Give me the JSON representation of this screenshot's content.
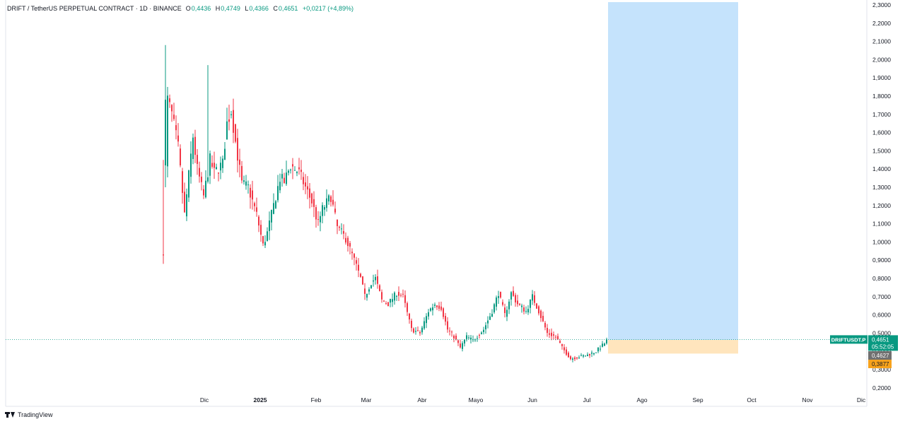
{
  "header": {
    "symbol": "DRIFT / TetherUS PERPETUAL CONTRACT · 1D · BINANCE",
    "o_label": "O",
    "o_value": "0,4436",
    "h_label": "H",
    "h_value": "0,4749",
    "l_label": "L",
    "l_value": "0,4366",
    "c_label": "C",
    "c_value": "0,4651",
    "change": "+0,0217 (+4,89%)"
  },
  "footer": {
    "brand": "TradingView",
    "logo_icon": "tradingview-logo-icon"
  },
  "badges": {
    "ticker": "DRIFTUSDT.P",
    "price": "0,4651",
    "countdown": "05:52:05",
    "entry": "0,4627",
    "stop": "0,3877"
  },
  "colors": {
    "up": "#089981",
    "down": "#f23645",
    "profit_zone": "#bbdefb",
    "loss_zone": "#ffe0b2",
    "entry_badge": "#707070",
    "stop_badge": "#f7a21b"
  },
  "chart_data": {
    "type": "candlestick",
    "interval": "1D",
    "x_labels": [
      "Dic",
      "2025",
      "Feb",
      "Mar",
      "Abr",
      "Mayo",
      "Jun",
      "Jul",
      "Ago",
      "Sep",
      "Oct",
      "Nov",
      "Dic"
    ],
    "y_ticks": [
      "2,3000",
      "2,2000",
      "2,1000",
      "2,0000",
      "1,9000",
      "1,8000",
      "1,7000",
      "1,6000",
      "1,5000",
      "1,4000",
      "1,3000",
      "1,2000",
      "1,1000",
      "1,0000",
      "0,9000",
      "0,8000",
      "0,7000",
      "0,6000",
      "0,5000",
      "0,4000",
      "0,3000",
      "0,2000"
    ],
    "ylim": [
      0.2,
      2.3
    ],
    "current_price": 0.4651,
    "position": {
      "entry": 0.4627,
      "stop": 0.3877,
      "target": 2.3
    },
    "keypoints": [
      {
        "t": 0,
        "v": 0.95
      },
      {
        "t": 1,
        "v": 1.4
      },
      {
        "t": 2,
        "v": 1.78
      },
      {
        "t": 4,
        "v": 1.7
      },
      {
        "t": 7,
        "v": 1.52
      },
      {
        "t": 10,
        "v": 1.15
      },
      {
        "t": 14,
        "v": 1.58
      },
      {
        "t": 16,
        "v": 1.4
      },
      {
        "t": 19,
        "v": 1.25
      },
      {
        "t": 22,
        "v": 1.45
      },
      {
        "t": 24,
        "v": 1.38
      },
      {
        "t": 28,
        "v": 1.43
      },
      {
        "t": 30,
        "v": 1.65
      },
      {
        "t": 32,
        "v": 1.72
      },
      {
        "t": 34,
        "v": 1.55
      },
      {
        "t": 37,
        "v": 1.32
      },
      {
        "t": 40,
        "v": 1.3
      },
      {
        "t": 44,
        "v": 1.15
      },
      {
        "t": 47,
        "v": 0.98
      },
      {
        "t": 49,
        "v": 1.05
      },
      {
        "t": 52,
        "v": 1.2
      },
      {
        "t": 55,
        "v": 1.35
      },
      {
        "t": 57,
        "v": 1.33
      },
      {
        "t": 60,
        "v": 1.42
      },
      {
        "t": 64,
        "v": 1.38
      },
      {
        "t": 67,
        "v": 1.3
      },
      {
        "t": 70,
        "v": 1.22
      },
      {
        "t": 73,
        "v": 1.1
      },
      {
        "t": 75,
        "v": 1.18
      },
      {
        "t": 79,
        "v": 1.25
      },
      {
        "t": 82,
        "v": 1.08
      },
      {
        "t": 86,
        "v": 1.02
      },
      {
        "t": 90,
        "v": 0.9
      },
      {
        "t": 93,
        "v": 0.8
      },
      {
        "t": 95,
        "v": 0.7
      },
      {
        "t": 98,
        "v": 0.78
      },
      {
        "t": 100,
        "v": 0.8
      },
      {
        "t": 103,
        "v": 0.68
      },
      {
        "t": 106,
        "v": 0.66
      },
      {
        "t": 110,
        "v": 0.72
      },
      {
        "t": 113,
        "v": 0.7
      },
      {
        "t": 117,
        "v": 0.52
      },
      {
        "t": 121,
        "v": 0.5
      },
      {
        "t": 125,
        "v": 0.62
      },
      {
        "t": 128,
        "v": 0.66
      },
      {
        "t": 131,
        "v": 0.64
      },
      {
        "t": 134,
        "v": 0.52
      },
      {
        "t": 137,
        "v": 0.48
      },
      {
        "t": 140,
        "v": 0.42
      },
      {
        "t": 143,
        "v": 0.48
      },
      {
        "t": 146,
        "v": 0.46
      },
      {
        "t": 151,
        "v": 0.52
      },
      {
        "t": 155,
        "v": 0.62
      },
      {
        "t": 158,
        "v": 0.72
      },
      {
        "t": 161,
        "v": 0.6
      },
      {
        "t": 164,
        "v": 0.72
      },
      {
        "t": 167,
        "v": 0.66
      },
      {
        "t": 171,
        "v": 0.62
      },
      {
        "t": 174,
        "v": 0.7
      },
      {
        "t": 177,
        "v": 0.62
      },
      {
        "t": 181,
        "v": 0.5
      },
      {
        "t": 185,
        "v": 0.48
      },
      {
        "t": 188,
        "v": 0.42
      },
      {
        "t": 192,
        "v": 0.36
      },
      {
        "t": 196,
        "v": 0.37
      },
      {
        "t": 200,
        "v": 0.38
      },
      {
        "t": 204,
        "v": 0.4
      },
      {
        "t": 208,
        "v": 0.4436
      },
      {
        "t": 209,
        "v": 0.4651
      }
    ]
  }
}
